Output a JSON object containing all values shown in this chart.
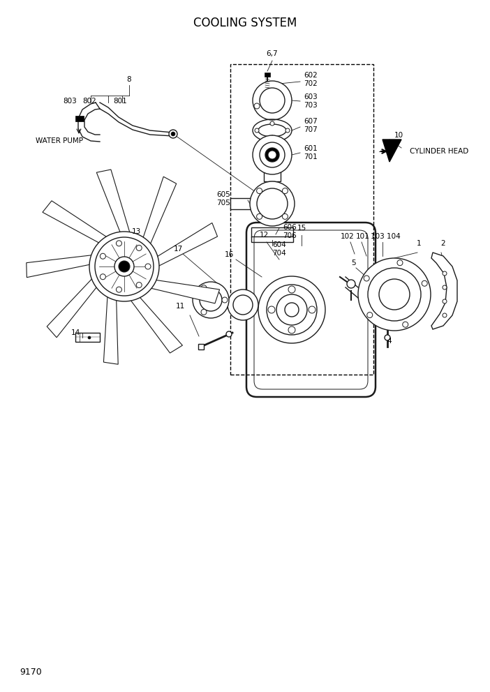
{
  "title": "COOLING SYSTEM",
  "page_number": "9170",
  "background_color": "#ffffff",
  "line_color": "#1a1a1a",
  "title_fontsize": 12,
  "label_fontsize": 7.5,
  "fig_width": 7.02,
  "fig_height": 9.92,
  "dpi": 100
}
